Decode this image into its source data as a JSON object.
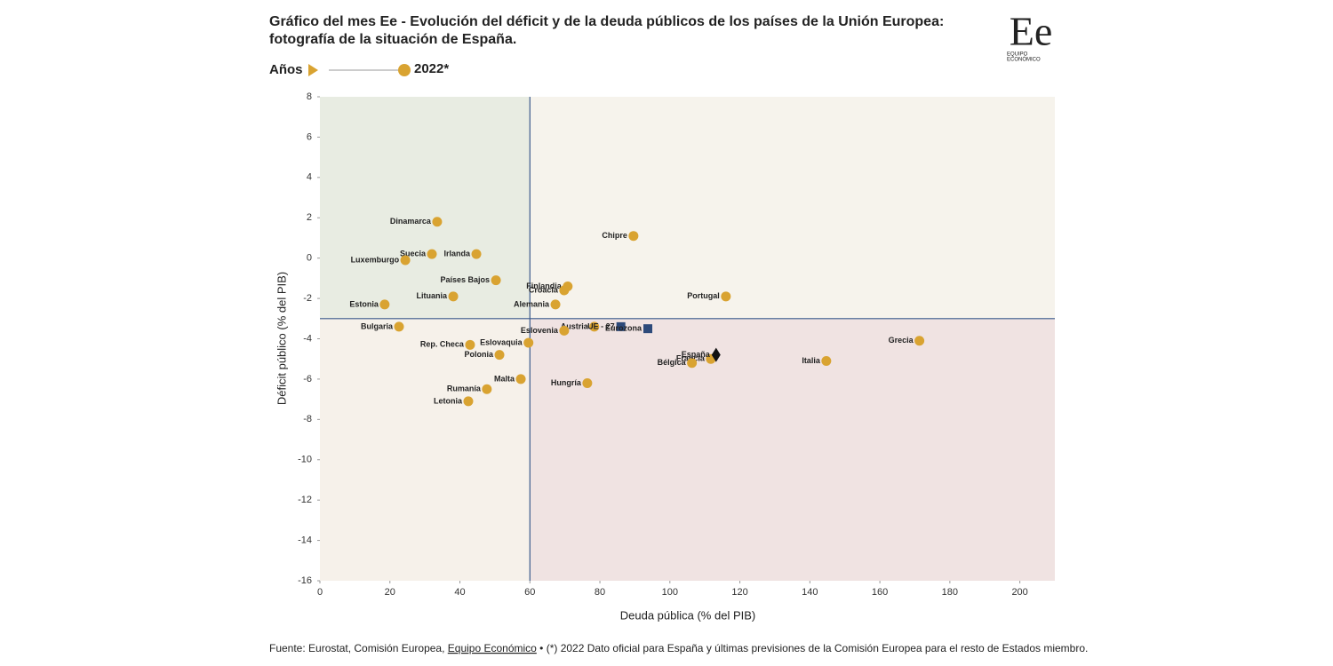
{
  "chart_data": {
    "type": "scatter",
    "title_lines": [
      "Gráfico del mes Ee - Evolución del déficit y de la deuda públicos de los países de la Unión Europea:",
      "fotografía de la situación de España."
    ],
    "legend_label": "Años",
    "x_label": "Deuda pública (% del PIB)",
    "y_label": "Déficit público (% del PIB)",
    "xlim": [
      0,
      210
    ],
    "ylim": [
      -16,
      8
    ],
    "xticks": [
      0,
      20,
      40,
      60,
      80,
      100,
      120,
      140,
      160,
      180,
      200
    ],
    "yticks": [
      -16,
      -14,
      -12,
      -10,
      -8,
      -6,
      -4,
      -2,
      0,
      2,
      4,
      6,
      8
    ],
    "vline": 60,
    "hline": -3,
    "quadrant_colors": {
      "top_left": "#e8ece2",
      "top_right": "#f6f3ec",
      "bottom_left": "#f6f1ea",
      "bottom_right": "#f0e3e2"
    },
    "line_color": "#3a5a8c",
    "series": [
      {
        "name": "2022*",
        "color": "#d9a331",
        "marker": "circle",
        "labels": [
          "Dinamarca",
          "Chipre",
          "Suecia",
          "Irlanda",
          "Luxemburgo",
          "Países Bajos",
          "Finlandia",
          "Croacia",
          "Lituania",
          "Portugal",
          "Estonia",
          "Alemania",
          "Bulgaria",
          "Austria",
          "Eslovenia",
          "Grecia",
          "Eslovaquia",
          "Rep. Checa",
          "Francia",
          "Bélgica",
          "Polonia",
          "Italia",
          "Malta",
          "Hungría",
          "Rumanía",
          "Letonia"
        ],
        "x": [
          33.5,
          89.6,
          32,
          44.7,
          24.4,
          50.3,
          70.8,
          69.8,
          38.1,
          116,
          18.5,
          67.3,
          22.6,
          78.4,
          69.8,
          171.3,
          59.6,
          42.9,
          111.7,
          106.3,
          51.3,
          144.7,
          57.4,
          76.4,
          47.7,
          42.4
        ],
        "y": [
          1.8,
          1.1,
          0.2,
          0.2,
          -0.1,
          -1.1,
          -1.4,
          -1.6,
          -1.9,
          -1.9,
          -2.3,
          -2.3,
          -3.4,
          -3.4,
          -3.6,
          -4.1,
          -4.2,
          -4.3,
          -5.0,
          -5.2,
          -4.8,
          -5.1,
          -6.0,
          -6.2,
          -6.5,
          -7.1
        ]
      },
      {
        "color": "#2d4a7a",
        "marker": "square",
        "labels": [
          "UE - 27",
          "Eurozona"
        ],
        "x": [
          86,
          93.7
        ],
        "y": [
          -3.4,
          -3.5
        ]
      },
      {
        "color": "#111111",
        "marker": "diamond",
        "labels": [
          "España"
        ],
        "x": [
          113.2
        ],
        "y": [
          -4.8
        ]
      }
    ]
  },
  "logo": {
    "mark": "Ee",
    "sub": [
      "EQUIPO",
      "ECONÓMICO"
    ]
  },
  "source": {
    "before": "Fuente: Eurostat, Comisión Europea, ",
    "link": "Equipo Económico",
    "after": " • (*) 2022 Dato oficial para España y últimas previsiones de la Comisión Europea para el resto de Estados miembro."
  }
}
